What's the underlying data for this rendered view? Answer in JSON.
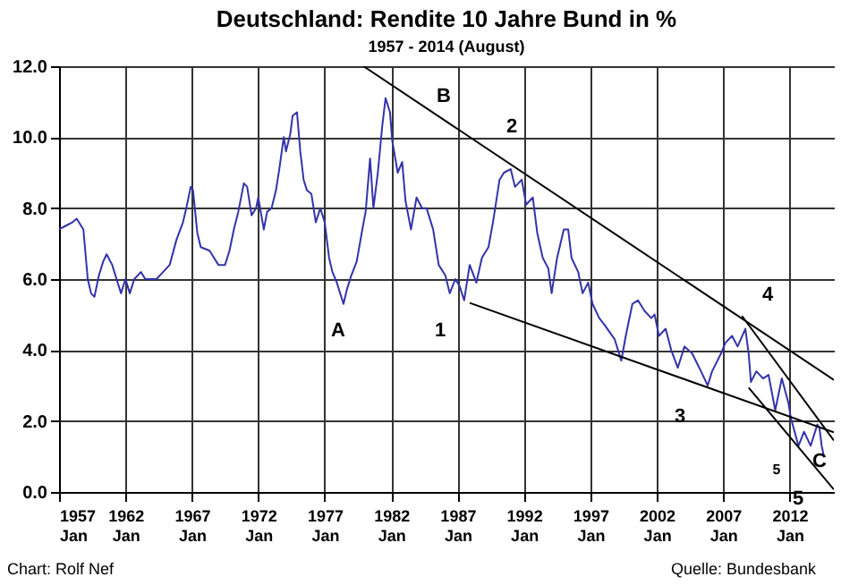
{
  "chart_data": {
    "type": "line",
    "title": "Deutschland: Rendite 10 Jahre Bund  in %",
    "subtitle": "1957 - 2014 (August)",
    "xlim": [
      "1957-01",
      "2015-05"
    ],
    "ylim": [
      0,
      12
    ],
    "xticks": [
      {
        "value": "1957-01",
        "label": "1957\nJan"
      },
      {
        "value": "1962-01",
        "label": "1962\nJan"
      },
      {
        "value": "1967-01",
        "label": "1967\nJan"
      },
      {
        "value": "1972-01",
        "label": "1972\nJan"
      },
      {
        "value": "1977-01",
        "label": "1977\nJan"
      },
      {
        "value": "1982-01",
        "label": "1982\nJan"
      },
      {
        "value": "1987-01",
        "label": "1987\nJan"
      },
      {
        "value": "1992-01",
        "label": "1992\nJan"
      },
      {
        "value": "1997-01",
        "label": "1997\nJan"
      },
      {
        "value": "2002-01",
        "label": "2002\nJan"
      },
      {
        "value": "2007-01",
        "label": "2007\nJan"
      },
      {
        "value": "2012-01",
        "label": "2012\nJan"
      }
    ],
    "yticks": [
      {
        "value": 0,
        "label": "0.0"
      },
      {
        "value": 2,
        "label": "2.0"
      },
      {
        "value": 4,
        "label": "4.0"
      },
      {
        "value": 6,
        "label": "6.0"
      },
      {
        "value": 8,
        "label": "8.0"
      },
      {
        "value": 10,
        "label": "10.0"
      },
      {
        "value": 12,
        "label": "12.0"
      }
    ],
    "grid": true,
    "line_style": "solid",
    "marker": "none",
    "series": [
      {
        "color": "#3333aa",
        "x": [
          "1957-01",
          "1957-07",
          "1958-01",
          "1958-05",
          "1958-11",
          "1959-03",
          "1959-06",
          "1959-09",
          "1960-01",
          "1960-05",
          "1960-08",
          "1961-01",
          "1961-06",
          "1961-09",
          "1962-01",
          "1962-05",
          "1962-09",
          "1963-03",
          "1963-07",
          "1964-01",
          "1964-05",
          "1964-11",
          "1965-05",
          "1965-11",
          "1966-05",
          "1966-08",
          "1966-12",
          "1967-02",
          "1967-06",
          "1967-09",
          "1968-05",
          "1968-09",
          "1969-01",
          "1969-07",
          "1969-11",
          "1970-03",
          "1970-07",
          "1970-12",
          "1971-03",
          "1971-07",
          "1971-11",
          "1972-01",
          "1972-06",
          "1972-09",
          "1973-01",
          "1973-05",
          "1973-08",
          "1973-12",
          "1974-02",
          "1974-06",
          "1974-08",
          "1974-12",
          "1975-03",
          "1975-06",
          "1975-09",
          "1976-01",
          "1976-05",
          "1976-09",
          "1977-01",
          "1977-05",
          "1977-08",
          "1977-12",
          "1978-03",
          "1978-06",
          "1978-09",
          "1979-01",
          "1979-06",
          "1979-11",
          "1980-02",
          "1980-06",
          "1980-09",
          "1981-01",
          "1981-05",
          "1981-08",
          "1981-12",
          "1982-02",
          "1982-07",
          "1982-11",
          "1983-02",
          "1983-07",
          "1983-12",
          "1984-05",
          "1984-09",
          "1985-03",
          "1985-08",
          "1986-02",
          "1986-06",
          "1986-11",
          "1987-03",
          "1987-07",
          "1987-12",
          "1988-06",
          "1988-11",
          "1989-05",
          "1989-09",
          "1990-03",
          "1990-07",
          "1991-01",
          "1991-05",
          "1991-11",
          "1992-03",
          "1992-09",
          "1993-01",
          "1993-06",
          "1993-11",
          "1994-02",
          "1994-07",
          "1995-01",
          "1995-05",
          "1995-08",
          "1996-02",
          "1996-06",
          "1996-11",
          "1997-03",
          "1997-09",
          "1998-02",
          "1998-11",
          "1999-05",
          "1999-09",
          "2000-03",
          "2000-08",
          "2001-02",
          "2001-08",
          "2001-11",
          "2002-03",
          "2002-09",
          "2003-02",
          "2003-08",
          "2004-02",
          "2004-09",
          "2005-05",
          "2005-11",
          "2006-03",
          "2006-11",
          "2007-03",
          "2007-09",
          "2008-02",
          "2008-09",
          "2008-12",
          "2009-02",
          "2009-07",
          "2010-01",
          "2010-06",
          "2010-12",
          "2011-06",
          "2011-12",
          "2012-02",
          "2012-09",
          "2013-02",
          "2013-08",
          "2014-02",
          "2014-04",
          "2014-06",
          "2014-08"
        ],
        "values": [
          7.4,
          7.5,
          7.6,
          7.7,
          7.4,
          6.0,
          5.6,
          5.5,
          6.1,
          6.5,
          6.7,
          6.4,
          5.9,
          5.6,
          6.0,
          5.6,
          6.0,
          6.2,
          6.0,
          6.0,
          6.0,
          6.2,
          6.4,
          7.1,
          7.6,
          8.0,
          8.6,
          8.5,
          7.3,
          6.9,
          6.8,
          6.6,
          6.4,
          6.4,
          6.8,
          7.4,
          7.9,
          8.7,
          8.6,
          7.8,
          8.0,
          8.3,
          7.4,
          7.9,
          8.0,
          8.5,
          9.1,
          10.0,
          9.6,
          10.1,
          10.6,
          10.7,
          9.6,
          8.8,
          8.5,
          8.4,
          7.6,
          8.0,
          7.6,
          6.6,
          6.2,
          5.9,
          5.6,
          5.3,
          5.7,
          6.1,
          6.5,
          7.4,
          7.9,
          9.4,
          8.0,
          9.0,
          10.3,
          11.1,
          10.7,
          9.9,
          9.0,
          9.3,
          8.2,
          7.4,
          8.3,
          8.0,
          8.0,
          7.4,
          6.4,
          6.1,
          5.6,
          6.0,
          5.8,
          5.4,
          6.4,
          5.9,
          6.6,
          6.9,
          7.6,
          8.8,
          9.0,
          9.1,
          8.6,
          8.8,
          8.1,
          8.3,
          7.3,
          6.6,
          6.3,
          5.6,
          6.6,
          7.4,
          7.4,
          6.6,
          6.2,
          5.6,
          5.9,
          5.3,
          4.9,
          4.7,
          4.3,
          3.7,
          4.4,
          5.3,
          5.4,
          5.1,
          4.9,
          5.0,
          4.4,
          4.6,
          4.0,
          3.5,
          4.1,
          3.9,
          3.4,
          3.0,
          3.4,
          3.9,
          4.2,
          4.4,
          4.1,
          4.6,
          3.9,
          3.1,
          3.4,
          3.2,
          3.3,
          2.3,
          3.2,
          2.5,
          2.1,
          1.3,
          1.7,
          1.3,
          1.9,
          1.8,
          1.3,
          1.0
        ]
      },
      {
        "color": "#000000",
        "x": [
          "1979-12",
          "2015-05"
        ],
        "values": [
          12.0,
          3.16
        ]
      },
      {
        "color": "#000000",
        "x": [
          "1987-12",
          "2015-05"
        ],
        "values": [
          5.33,
          1.68
        ]
      },
      {
        "color": "#000000",
        "x": [
          "2008-06",
          "2015-05"
        ],
        "values": [
          4.96,
          1.45
        ]
      },
      {
        "color": "#000000",
        "x": [
          "2008-12",
          "2015-05"
        ],
        "values": [
          2.94,
          0.07
        ]
      }
    ],
    "annotations": [
      "Chart: Rolf Nef",
      "Quelle: Bundesbank",
      "A",
      "B",
      "2",
      "1",
      "3",
      "4",
      "5",
      "C",
      "5"
    ]
  }
}
